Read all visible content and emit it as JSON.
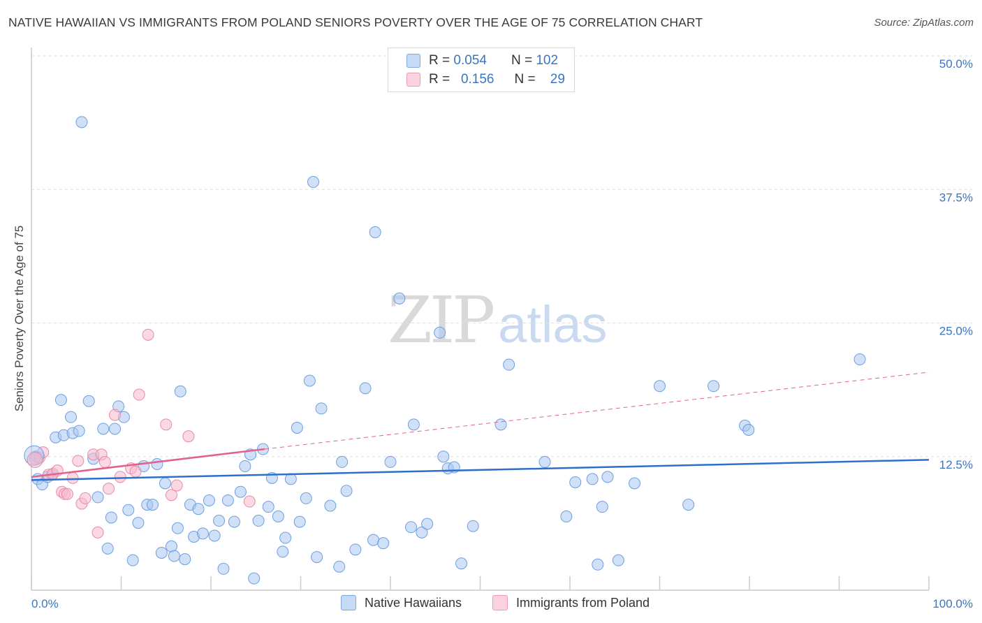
{
  "title": "NATIVE HAWAIIAN VS IMMIGRANTS FROM POLAND SENIORS POVERTY OVER THE AGE OF 75 CORRELATION CHART",
  "source": "Source: ZipAtlas.com",
  "watermark": {
    "zip": "ZIP",
    "atlas": "atlas"
  },
  "legend": {
    "rows": [
      {
        "r_label": "R =",
        "r_value": "0.054",
        "n_label": "N =",
        "n_value": "102",
        "color": "#a9c8f0"
      },
      {
        "r_label": "R =",
        "r_value": "0.156",
        "n_label": "N =",
        "n_value": "29",
        "color": "#f6b9cd"
      }
    ]
  },
  "bottom_legend": [
    "Native Hawaiians",
    "Immigrants from Poland"
  ],
  "chart_data": {
    "type": "scatter",
    "title": "NATIVE HAWAIIAN VS IMMIGRANTS FROM POLAND SENIORS POVERTY OVER THE AGE OF 75 CORRELATION CHART",
    "xlabel": "",
    "ylabel": "Seniors Poverty Over the Age of 75",
    "xlim": [
      0,
      100
    ],
    "ylim": [
      0,
      50
    ],
    "x_tick_labels": [
      "0.0%",
      "100.0%"
    ],
    "y_ticks": [
      12.5,
      25.0,
      37.5,
      50.0
    ],
    "y_tick_labels": [
      "12.5%",
      "25.0%",
      "37.5%",
      "50.0%"
    ],
    "grid": true,
    "series": [
      {
        "name": "Native Hawaiians",
        "color": "#a9c8f0",
        "stroke": "#6d9ee0",
        "trend": {
          "x": [
            0,
            100
          ],
          "y": [
            10.3,
            12.2
          ],
          "color": "#2f6fcc"
        },
        "points": [
          [
            0.5,
            12.5
          ],
          [
            0.7,
            10.4
          ],
          [
            1.2,
            9.9
          ],
          [
            1.8,
            10.6
          ],
          [
            2.3,
            10.8
          ],
          [
            2.7,
            14.3
          ],
          [
            3.3,
            17.8
          ],
          [
            3.6,
            14.5
          ],
          [
            4.4,
            16.2
          ],
          [
            4.6,
            14.7
          ],
          [
            5.3,
            14.9
          ],
          [
            5.6,
            43.8
          ],
          [
            6.4,
            17.7
          ],
          [
            6.9,
            12.3
          ],
          [
            7.4,
            8.7
          ],
          [
            8.0,
            15.1
          ],
          [
            8.5,
            3.9
          ],
          [
            8.9,
            6.8
          ],
          [
            9.3,
            15.1
          ],
          [
            9.7,
            17.2
          ],
          [
            10.3,
            16.2
          ],
          [
            10.8,
            7.5
          ],
          [
            11.3,
            2.8
          ],
          [
            11.9,
            6.3
          ],
          [
            12.5,
            11.6
          ],
          [
            12.9,
            8.0
          ],
          [
            13.5,
            8.0
          ],
          [
            14.0,
            11.8
          ],
          [
            14.5,
            3.5
          ],
          [
            14.9,
            10.0
          ],
          [
            15.6,
            4.1
          ],
          [
            15.9,
            3.2
          ],
          [
            16.3,
            5.8
          ],
          [
            16.6,
            18.6
          ],
          [
            17.1,
            2.9
          ],
          [
            17.7,
            8.0
          ],
          [
            18.1,
            5.0
          ],
          [
            18.6,
            7.6
          ],
          [
            19.1,
            5.3
          ],
          [
            19.8,
            8.4
          ],
          [
            20.4,
            5.1
          ],
          [
            20.9,
            6.5
          ],
          [
            21.4,
            2.0
          ],
          [
            21.9,
            8.4
          ],
          [
            22.6,
            6.4
          ],
          [
            23.3,
            9.2
          ],
          [
            23.8,
            11.6
          ],
          [
            24.4,
            12.7
          ],
          [
            24.8,
            1.1
          ],
          [
            25.3,
            6.5
          ],
          [
            25.8,
            13.2
          ],
          [
            26.4,
            7.8
          ],
          [
            26.8,
            10.5
          ],
          [
            27.5,
            6.9
          ],
          [
            28.0,
            3.6
          ],
          [
            28.3,
            4.9
          ],
          [
            28.9,
            10.4
          ],
          [
            29.6,
            15.2
          ],
          [
            29.9,
            6.4
          ],
          [
            30.6,
            8.6
          ],
          [
            31.0,
            19.6
          ],
          [
            31.8,
            3.1
          ],
          [
            32.3,
            17.0
          ],
          [
            33.3,
            7.9
          ],
          [
            34.3,
            2.2
          ],
          [
            34.6,
            12.0
          ],
          [
            35.1,
            9.3
          ],
          [
            36.1,
            3.8
          ],
          [
            37.2,
            18.9
          ],
          [
            38.1,
            4.7
          ],
          [
            38.3,
            33.5
          ],
          [
            39.2,
            4.4
          ],
          [
            40.0,
            12.0
          ],
          [
            41.0,
            27.3
          ],
          [
            42.3,
            5.9
          ],
          [
            42.6,
            15.5
          ],
          [
            43.5,
            5.4
          ],
          [
            44.1,
            6.2
          ],
          [
            45.5,
            24.1
          ],
          [
            45.9,
            12.5
          ],
          [
            46.4,
            11.4
          ],
          [
            47.1,
            11.5
          ],
          [
            47.9,
            2.5
          ],
          [
            49.2,
            6.0
          ],
          [
            52.3,
            15.5
          ],
          [
            53.2,
            21.1
          ],
          [
            57.2,
            12.0
          ],
          [
            59.6,
            6.9
          ],
          [
            60.6,
            10.1
          ],
          [
            62.5,
            10.4
          ],
          [
            63.1,
            2.4
          ],
          [
            63.6,
            7.8
          ],
          [
            64.2,
            10.6
          ],
          [
            65.4,
            2.8
          ],
          [
            67.2,
            10.0
          ],
          [
            70.0,
            19.1
          ],
          [
            73.2,
            8.0
          ],
          [
            76.0,
            19.1
          ],
          [
            79.5,
            15.4
          ],
          [
            79.9,
            15.0
          ],
          [
            92.3,
            21.6
          ],
          [
            31.4,
            38.2
          ]
        ]
      },
      {
        "name": "Immigrants from Poland",
        "color": "#f6b9cd",
        "stroke": "#e88aa8",
        "trend": {
          "x": [
            0,
            26
          ],
          "y": [
            10.6,
            13.2
          ],
          "dashed_extension": {
            "x": [
              26,
              100
            ],
            "y": [
              13.2,
              20.4
            ]
          },
          "color": "#e2628d"
        },
        "points": [
          [
            0.4,
            12.3
          ],
          [
            0.9,
            12.4
          ],
          [
            1.3,
            12.9
          ],
          [
            1.9,
            10.8
          ],
          [
            2.4,
            10.9
          ],
          [
            2.9,
            11.2
          ],
          [
            3.4,
            9.2
          ],
          [
            3.7,
            9.0
          ],
          [
            4.0,
            9.0
          ],
          [
            4.6,
            10.5
          ],
          [
            5.2,
            12.1
          ],
          [
            5.6,
            8.1
          ],
          [
            6.0,
            8.6
          ],
          [
            6.9,
            12.7
          ],
          [
            7.4,
            5.4
          ],
          [
            7.8,
            12.7
          ],
          [
            8.2,
            12.0
          ],
          [
            8.6,
            9.5
          ],
          [
            9.3,
            16.4
          ],
          [
            9.9,
            10.6
          ],
          [
            11.1,
            11.4
          ],
          [
            11.6,
            11.1
          ],
          [
            12.0,
            18.3
          ],
          [
            13.0,
            23.9
          ],
          [
            15.0,
            15.5
          ],
          [
            15.6,
            8.9
          ],
          [
            16.2,
            9.8
          ],
          [
            17.5,
            14.4
          ],
          [
            24.3,
            8.3
          ]
        ]
      }
    ]
  }
}
